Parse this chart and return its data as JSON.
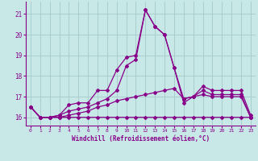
{
  "xlabel": "Windchill (Refroidissement éolien,°C)",
  "ylabel": "",
  "xlim": [
    -0.5,
    23.5
  ],
  "ylim": [
    15.6,
    21.6
  ],
  "yticks": [
    16,
    17,
    18,
    19,
    20,
    21
  ],
  "xticks": [
    0,
    1,
    2,
    3,
    4,
    5,
    6,
    7,
    8,
    9,
    10,
    11,
    12,
    13,
    14,
    15,
    16,
    17,
    18,
    19,
    20,
    21,
    22,
    23
  ],
  "bg_color": "#c8e8e8",
  "grid_color": "#aacece",
  "line_color": "#880088",
  "lines": [
    {
      "x": [
        0,
        1,
        2,
        3,
        4,
        5,
        6,
        7,
        8,
        9,
        10,
        11,
        12,
        13,
        14,
        15,
        16,
        17,
        18,
        19,
        20,
        21,
        22,
        23
      ],
      "y": [
        16.5,
        16.0,
        16.0,
        16.1,
        16.6,
        16.7,
        16.7,
        17.3,
        17.3,
        18.3,
        18.9,
        19.0,
        21.2,
        20.4,
        20.0,
        18.4,
        16.9,
        17.0,
        17.5,
        17.3,
        17.3,
        17.3,
        17.3,
        16.1
      ]
    },
    {
      "x": [
        0,
        1,
        2,
        3,
        4,
        5,
        6,
        7,
        8,
        9,
        10,
        11,
        12,
        13,
        14,
        15,
        16,
        17,
        18,
        19,
        20,
        21,
        22,
        23
      ],
      "y": [
        16.5,
        16.0,
        16.0,
        16.1,
        16.3,
        16.4,
        16.5,
        16.7,
        16.9,
        17.3,
        18.5,
        18.8,
        21.2,
        20.4,
        20.0,
        18.4,
        16.7,
        17.0,
        17.3,
        17.1,
        17.1,
        17.1,
        17.1,
        16.0
      ]
    },
    {
      "x": [
        0,
        1,
        2,
        3,
        4,
        5,
        6,
        7,
        8,
        9,
        10,
        11,
        12,
        13,
        14,
        15,
        16,
        17,
        18,
        19,
        20,
        21,
        22,
        23
      ],
      "y": [
        16.5,
        16.0,
        16.0,
        16.0,
        16.1,
        16.2,
        16.3,
        16.5,
        16.6,
        16.8,
        16.9,
        17.0,
        17.1,
        17.2,
        17.3,
        17.4,
        16.9,
        17.0,
        17.1,
        17.0,
        17.0,
        17.0,
        17.0,
        16.0
      ]
    },
    {
      "x": [
        0,
        1,
        2,
        3,
        4,
        5,
        6,
        7,
        8,
        9,
        10,
        11,
        12,
        13,
        14,
        15,
        16,
        17,
        18,
        19,
        20,
        21,
        22,
        23
      ],
      "y": [
        16.5,
        16.0,
        16.0,
        16.0,
        16.0,
        16.0,
        16.0,
        16.0,
        16.0,
        16.0,
        16.0,
        16.0,
        16.0,
        16.0,
        16.0,
        16.0,
        16.0,
        16.0,
        16.0,
        16.0,
        16.0,
        16.0,
        16.0,
        16.0
      ]
    }
  ]
}
